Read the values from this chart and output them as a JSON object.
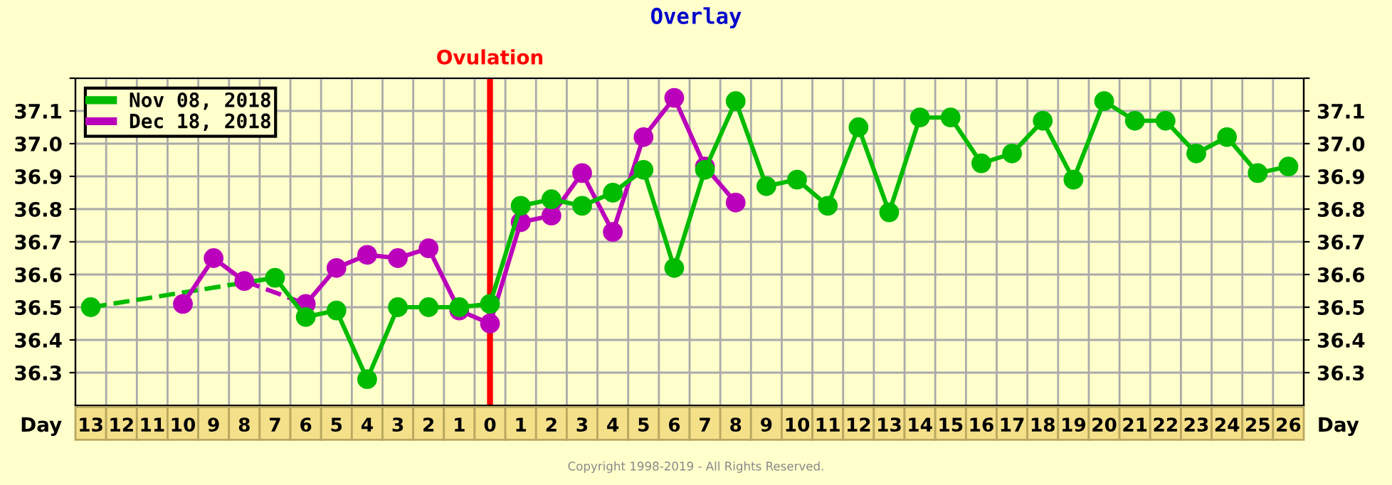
{
  "chart_data": {
    "type": "line",
    "title": "Overlay",
    "xlabel": "Day",
    "categories": [
      "13",
      "12",
      "11",
      "10",
      "9",
      "8",
      "7",
      "6",
      "5",
      "4",
      "3",
      "2",
      "1",
      "0",
      "1",
      "2",
      "3",
      "4",
      "5",
      "6",
      "7",
      "8",
      "9",
      "10",
      "11",
      "12",
      "13",
      "14",
      "15",
      "16",
      "17",
      "18",
      "19",
      "20",
      "21",
      "22",
      "23",
      "24",
      "25",
      "26"
    ],
    "series": [
      {
        "name": "Nov 08, 2018",
        "color": "#00bb00",
        "values": [
          36.5,
          null,
          null,
          null,
          null,
          null,
          36.59,
          36.47,
          36.49,
          36.28,
          36.5,
          36.5,
          36.5,
          36.51,
          36.81,
          36.83,
          36.81,
          36.85,
          36.92,
          36.62,
          36.92,
          37.13,
          36.87,
          36.89,
          36.81,
          37.05,
          36.79,
          37.08,
          37.08,
          36.94,
          36.97,
          37.07,
          36.89,
          37.13,
          37.07,
          37.07,
          36.97,
          37.02,
          36.91,
          36.93
        ]
      },
      {
        "name": "Dec 18, 2018",
        "color": "#bb00bb",
        "values": [
          null,
          null,
          null,
          36.51,
          36.65,
          36.58,
          null,
          36.51,
          36.62,
          36.66,
          36.65,
          36.68,
          36.49,
          36.45,
          36.76,
          36.78,
          36.91,
          36.73,
          37.02,
          37.14,
          36.93,
          36.82,
          null,
          null,
          null,
          null,
          null,
          null,
          null,
          null,
          null,
          null,
          null,
          null,
          null,
          null,
          null,
          null,
          null,
          null
        ]
      }
    ],
    "ylim": [
      36.2,
      37.2
    ],
    "yticks": [
      36.3,
      36.4,
      36.5,
      36.6,
      36.7,
      36.8,
      36.9,
      {
        "value": 37,
        "label": "37.0"
      },
      37.1,
      {
        "value": 37.2,
        "label": null
      }
    ],
    "y2lim": [
      36.2,
      37.2
    ],
    "y2ticks": [
      36.3,
      36.4,
      36.5,
      36.6,
      36.7,
      36.8,
      36.9,
      {
        "value": 37,
        "label": "37.0"
      },
      37.1,
      {
        "value": 37.2,
        "label": null
      }
    ],
    "ref_lines": [
      {
        "axis": "x",
        "value": "0",
        "label": "Ovulation",
        "color": "#ff0000"
      }
    ],
    "grid": true,
    "legend": "top left",
    "marker": "circle",
    "line_style": "solid",
    "annotations": [
      "Copyright 1998-2019 - All Rights Reserved."
    ]
  }
}
